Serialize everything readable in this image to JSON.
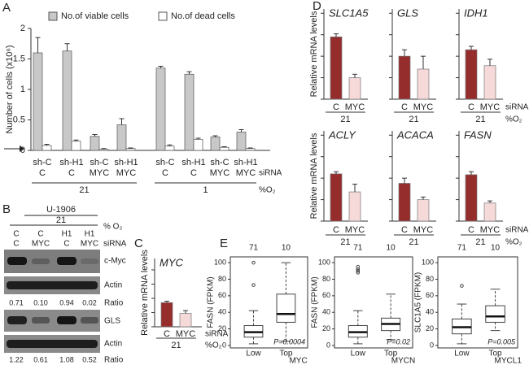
{
  "panels": [
    "A",
    "B",
    "C",
    "D",
    "E"
  ],
  "chart_data": [
    {
      "type": "bar",
      "y_label": "Number of cells (x10⁶)",
      "categories": [
        [
          "sh-C",
          "C"
        ],
        [
          "sh-H1",
          "C"
        ],
        [
          "sh-C",
          "MYC"
        ],
        [
          "sh-H1",
          "MYC"
        ],
        [
          "sh-C",
          "C"
        ],
        [
          "sh-H1",
          "C"
        ],
        [
          "sh-C",
          "MYC"
        ],
        [
          "sh-H1",
          "MYC"
        ]
      ],
      "groups": [
        "21",
        "1"
      ],
      "row_labels": [
        "siRNA",
        "%O₂"
      ],
      "series": [
        {
          "name": "No.of viable cells",
          "color": "#c8c8c8",
          "values": [
            1.6,
            1.63,
            0.23,
            0.42,
            1.35,
            1.25,
            0.22,
            0.3
          ],
          "errors": [
            0.25,
            0.12,
            0.03,
            0.1,
            0.03,
            0.04,
            0.02,
            0.04
          ]
        },
        {
          "name": "No.of dead cells",
          "color": "#ffffff",
          "values": [
            0.08,
            0.15,
            0.02,
            0.03,
            0.07,
            0.18,
            0.05,
            0.03
          ],
          "errors": [
            0.02,
            0.02,
            0.01,
            0.01,
            0.02,
            0.02,
            0.01,
            0.01
          ]
        }
      ],
      "ylim": [
        0,
        2
      ],
      "yticks": [
        0,
        0.5,
        1,
        1.5,
        2
      ],
      "tick_labels": true
    },
    {
      "type": "bar",
      "title": "MYC",
      "y_label": "Relative mRNA levels",
      "categories": [
        "C",
        "MYC"
      ],
      "values": [
        0.85,
        0.47
      ],
      "errors": [
        0.05,
        0.1
      ],
      "colors": [
        "#962d2d",
        "#f6d9d9"
      ],
      "groups": [
        "21"
      ],
      "row_labels": [
        "siRNA",
        "%O₂"
      ],
      "ylim": [
        0,
        2.4
      ],
      "yticks": [
        0,
        0.5,
        1,
        1.5,
        2
      ],
      "tick_labels": false
    },
    {
      "type": "bar",
      "title": "SLC1A5",
      "y_label": "Relative mRNA levels",
      "categories": [
        "C",
        "MYC"
      ],
      "values": [
        1.45,
        0.5
      ],
      "errors": [
        0.07,
        0.08
      ],
      "colors": [
        "#962d2d",
        "#f6d9d9"
      ],
      "groups": [
        "21"
      ],
      "ylim": [
        0,
        2.1
      ],
      "yticks": [
        0,
        0.5,
        1,
        1.5,
        2
      ],
      "tick_labels": false
    },
    {
      "type": "bar",
      "title": "GLS",
      "categories": [
        "C",
        "MYC"
      ],
      "values": [
        1.0,
        0.7
      ],
      "errors": [
        0.15,
        0.3
      ],
      "colors": [
        "#962d2d",
        "#f6d9d9"
      ],
      "groups": [
        "21"
      ],
      "ylim": [
        0,
        2.1
      ],
      "yticks": [
        0,
        0.5,
        1,
        1.5,
        2
      ],
      "tick_labels": false
    },
    {
      "type": "bar",
      "title": "IDH1",
      "categories": [
        "C",
        "MYC"
      ],
      "values": [
        1.15,
        0.78
      ],
      "errors": [
        0.08,
        0.15
      ],
      "colors": [
        "#962d2d",
        "#f6d9d9"
      ],
      "groups": [
        "21"
      ],
      "row_labels": [
        "siRNA",
        "%O₂"
      ],
      "ylim": [
        0,
        2.1
      ],
      "yticks": [
        0,
        0.5,
        1,
        1.5,
        2
      ],
      "tick_labels": false
    },
    {
      "type": "bar",
      "title": "ACLY",
      "y_label": "Relative mRNA levels",
      "categories": [
        "C",
        "MYC"
      ],
      "values": [
        1.1,
        0.68
      ],
      "errors": [
        0.05,
        0.18
      ],
      "colors": [
        "#962d2d",
        "#f6d9d9"
      ],
      "groups": [
        "21"
      ],
      "ylim": [
        0,
        2.1
      ],
      "yticks": [
        0,
        0.5,
        1,
        1.5,
        2
      ],
      "tick_labels": false
    },
    {
      "type": "bar",
      "title": "ACACA",
      "categories": [
        "C",
        "MYC"
      ],
      "values": [
        0.88,
        0.5
      ],
      "errors": [
        0.12,
        0.06
      ],
      "colors": [
        "#962d2d",
        "#f6d9d9"
      ],
      "groups": [
        "21"
      ],
      "ylim": [
        0,
        2.1
      ],
      "yticks": [
        0,
        0.5,
        1,
        1.5,
        2
      ],
      "tick_labels": false
    },
    {
      "type": "bar",
      "title": "FASN",
      "categories": [
        "C",
        "MYC"
      ],
      "values": [
        1.08,
        0.42
      ],
      "errors": [
        0.07,
        0.05
      ],
      "colors": [
        "#962d2d",
        "#f6d9d9"
      ],
      "groups": [
        "21"
      ],
      "row_labels": [
        "siRNA",
        "%O₂"
      ],
      "ylim": [
        0,
        2.1
      ],
      "yticks": [
        0,
        0.5,
        1,
        1.5,
        2
      ],
      "tick_labels": false
    },
    {
      "type": "box",
      "y_label": "FASN (FPKM)",
      "x_label": "MYC",
      "categories": [
        "Low",
        "Top"
      ],
      "counts": [
        71,
        10
      ],
      "annotation": "P=0.0004",
      "boxes": [
        {
          "min": 2,
          "q1": 10,
          "median": 16,
          "q3": 24,
          "max": 42,
          "outliers": [
            73,
            100
          ]
        },
        {
          "min": 5,
          "q1": 28,
          "median": 38,
          "q3": 62,
          "max": 100,
          "outliers": []
        }
      ],
      "ylim": [
        -3,
        107
      ],
      "yticks": [
        0,
        20,
        40,
        60,
        80,
        100
      ]
    },
    {
      "type": "box",
      "y_label": "FASN (FPKM)",
      "x_label": "MYCN",
      "categories": [
        "Low",
        "Top"
      ],
      "counts": [
        71,
        10
      ],
      "annotation": "P=0.02",
      "boxes": [
        {
          "min": 2,
          "q1": 10,
          "median": 16,
          "q3": 24,
          "max": 42,
          "outliers": [
            88,
            90,
            92,
            95
          ]
        },
        {
          "min": 7,
          "q1": 18,
          "median": 26,
          "q3": 33,
          "max": 62,
          "outliers": []
        }
      ],
      "ylim": [
        -3,
        107
      ],
      "yticks": [
        0,
        20,
        40,
        60,
        80,
        100
      ]
    },
    {
      "type": "box",
      "y_label": "SLC1A5 (FPKM)",
      "x_label": "MYCL1",
      "categories": [
        "Low",
        "Top"
      ],
      "counts": [
        71,
        10
      ],
      "annotation": "P=0.005",
      "boxes": [
        {
          "min": 2,
          "q1": 14,
          "median": 22,
          "q3": 32,
          "max": 50,
          "outliers": [
            72
          ]
        },
        {
          "min": 18,
          "q1": 28,
          "median": 35,
          "q3": 48,
          "max": 68,
          "outliers": []
        }
      ],
      "ylim": [
        -3,
        107
      ],
      "yticks": [
        0,
        20,
        40,
        60,
        80,
        100
      ]
    }
  ],
  "blot": {
    "cell_line": "U-1906",
    "o2": "21",
    "o2_label": "% O₂",
    "sh": [
      "C",
      "C",
      "H1",
      "H1"
    ],
    "si": [
      "C",
      "MYC",
      "C",
      "MYC"
    ],
    "si_label": "siRNA",
    "rows": [
      {
        "label": "c-Myc"
      },
      {
        "label": "Actin"
      },
      {
        "label": "Ratio",
        "values": [
          "0.71",
          "0.10",
          "0.94",
          "0.02"
        ]
      },
      {
        "label": "GLS"
      },
      {
        "label": "Actin"
      },
      {
        "label": "Ratio",
        "values": [
          "1.22",
          "0.61",
          "1.08",
          "0.52"
        ]
      }
    ]
  }
}
